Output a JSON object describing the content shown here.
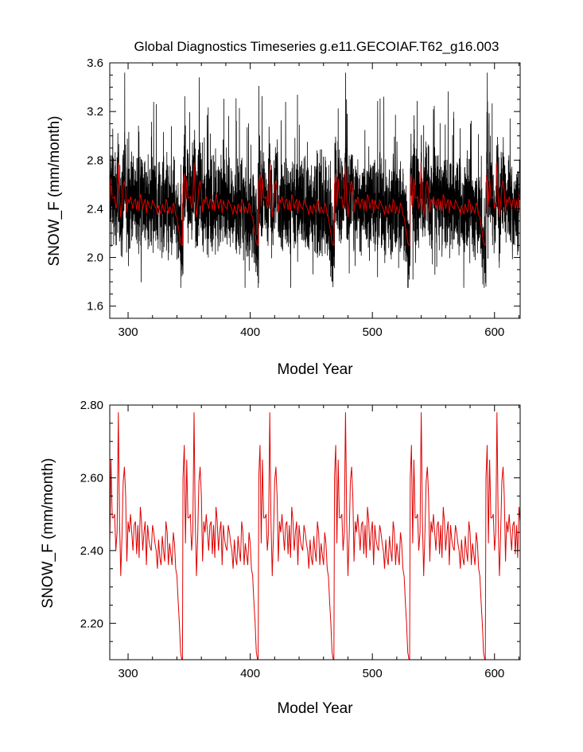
{
  "chart_data": [
    {
      "type": "line",
      "title": "Global Diagnostics Timeseries g.e11.GECOIAF.T62_g16.003",
      "xlabel": "Model Year",
      "ylabel": "SNOW_F (mm/month)",
      "xlim": [
        285,
        621
      ],
      "ylim": [
        1.5,
        3.6
      ],
      "xticks": [
        "300",
        "400",
        "500",
        "600"
      ],
      "yticks": [
        "1.6",
        "2.0",
        "2.4",
        "2.8",
        "3.2",
        "3.6"
      ],
      "grid": false,
      "series_colors": [
        "#000000",
        "#e00000"
      ],
      "period_years": 62,
      "cycle_starts": [
        283,
        345,
        407,
        469,
        531,
        593
      ],
      "series_description": [
        "monthly values (black, approx. 1.75–3.5)",
        "annual mean (red)"
      ]
    },
    {
      "type": "line",
      "xlabel": "Model Year",
      "ylabel": "SNOW_F (mm/month)",
      "xlim": [
        285,
        621
      ],
      "ylim": [
        2.1,
        2.8
      ],
      "xticks": [
        "300",
        "400",
        "500",
        "600"
      ],
      "yticks": [
        "2.20",
        "2.40",
        "2.60",
        "2.80"
      ],
      "grid": false,
      "series_colors": [
        "#e00000"
      ],
      "annual_cycle_x_offset": [
        0,
        1,
        2,
        3,
        4,
        5,
        6,
        7,
        8,
        9,
        10,
        11,
        12,
        13,
        14,
        15,
        16,
        17,
        18,
        19,
        20,
        21,
        22,
        23,
        24,
        25,
        26,
        27,
        28,
        29,
        30,
        31,
        32,
        33,
        34,
        35,
        36,
        37,
        38,
        39,
        40,
        41,
        42,
        43,
        44,
        45,
        46,
        47,
        48,
        49,
        50,
        51,
        52,
        53,
        54,
        55,
        56,
        57,
        58,
        59,
        60,
        61
      ],
      "annual_cycle_values": [
        2.6,
        2.69,
        2.42,
        2.65,
        2.49,
        2.49,
        2.5,
        2.4,
        2.45,
        2.78,
        2.48,
        2.33,
        2.44,
        2.59,
        2.63,
        2.55,
        2.37,
        2.48,
        2.45,
        2.5,
        2.45,
        2.4,
        2.47,
        2.48,
        2.39,
        2.47,
        2.38,
        2.52,
        2.48,
        2.4,
        2.45,
        2.48,
        2.36,
        2.47,
        2.43,
        2.41,
        2.4,
        2.47,
        2.45,
        2.42,
        2.4,
        2.35,
        2.43,
        2.38,
        2.36,
        2.44,
        2.4,
        2.37,
        2.48,
        2.45,
        2.36,
        2.42,
        2.39,
        2.36,
        2.45,
        2.42,
        2.35,
        2.33,
        2.26,
        2.2,
        2.12,
        2.1
      ]
    }
  ]
}
